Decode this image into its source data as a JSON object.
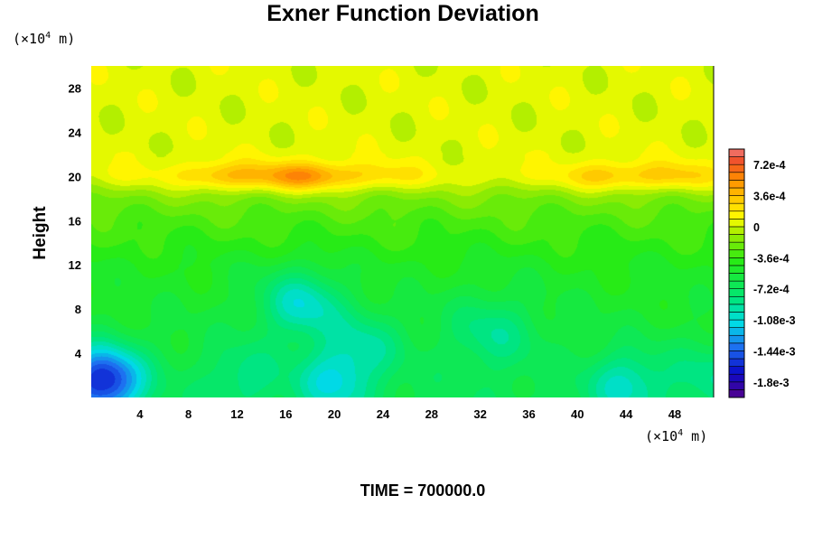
{
  "chart_data": {
    "type": "heatmap",
    "title": "Exner Function Deviation",
    "ylabel": "Height",
    "xlabel": "",
    "x_unit": {
      "base": "(×10",
      "exp": "4",
      "tail": " m)"
    },
    "y_unit": {
      "base": "(×10",
      "exp": "4",
      "tail": " m)"
    },
    "xlim": [
      0,
      51.2
    ],
    "ylim": [
      0,
      30
    ],
    "x_ticks": [
      4,
      8,
      12,
      16,
      20,
      24,
      28,
      32,
      36,
      40,
      44,
      48
    ],
    "y_ticks": [
      4,
      8,
      12,
      16,
      20,
      24,
      28
    ],
    "x_tick_labels": [
      "4",
      "8",
      "12",
      "16",
      "20",
      "24",
      "28",
      "32",
      "36",
      "40",
      "44",
      "48"
    ],
    "y_tick_labels": [
      "4",
      "8",
      "12",
      "16",
      "20",
      "24",
      "28"
    ],
    "colorbar": {
      "min": -0.00198,
      "max": 0.0009,
      "step": 9e-05,
      "tick_values": [
        0.00072,
        0.00036,
        0,
        -0.00036,
        -0.00072,
        -0.00108,
        -0.00144,
        -0.0018
      ],
      "tick_labels": [
        "7.2e-4",
        "3.6e-4",
        "0",
        "-3.6e-4",
        "-7.2e-4",
        "-1.08e-3",
        "-1.44e-3",
        "-1.8e-3"
      ]
    },
    "field_description_values": {
      "upper_layer_value": 4e-05,
      "band_height": 20,
      "band_peak_value": 0.0005,
      "band_peaks": [
        {
          "x": 19.5,
          "y": 19.8
        },
        {
          "x": 45,
          "y": 19.6
        },
        {
          "x": 13,
          "y": 20
        }
      ],
      "lower_gradient_values": [
        {
          "y": 16,
          "value": -0.0003
        },
        {
          "y": 12,
          "value": -0.00045
        },
        {
          "y": 0,
          "value": -0.00065
        }
      ],
      "minima": [
        {
          "x": 1,
          "y": 1.6,
          "value": -0.0017
        },
        {
          "x": 17.5,
          "y": 8.5,
          "value": -0.0011
        },
        {
          "x": 22.5,
          "y": 5,
          "value": -0.00095
        },
        {
          "x": 20,
          "y": 1.5,
          "value": -0.0011
        },
        {
          "x": 12.5,
          "y": 2,
          "value": -0.0009
        },
        {
          "x": 33,
          "y": 6,
          "value": -0.00085
        },
        {
          "x": 44,
          "y": 1.3,
          "value": -0.00105
        },
        {
          "x": 51,
          "y": 2,
          "value": -0.0009
        }
      ]
    },
    "footer": "TIME = 700000.0"
  }
}
